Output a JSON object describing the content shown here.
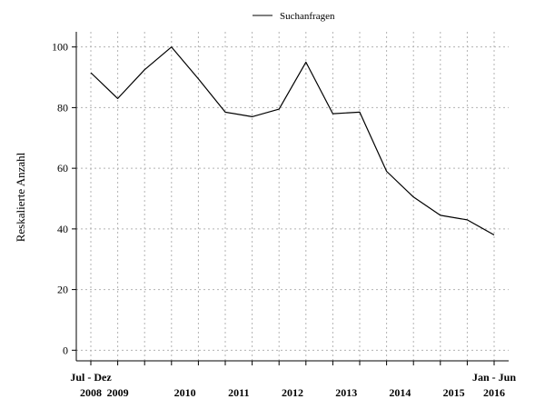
{
  "chart_data": {
    "type": "line",
    "ylabel": "Reskalierte Anzahl",
    "ylim": [
      -3.5,
      105
    ],
    "yticks": [
      0,
      20,
      40,
      60,
      80,
      100
    ],
    "grid": true,
    "legend_position": "top-center",
    "series": [
      {
        "name": "Suchanfragen",
        "color": "#000000",
        "values": [
          91.5,
          83,
          92.5,
          100,
          89.5,
          78.5,
          77,
          79.5,
          95,
          78,
          78.5,
          59,
          50.5,
          44.5,
          43,
          38
        ]
      }
    ],
    "x_label_blocks": [
      {
        "index": 0,
        "period": "Jul - Dez",
        "year": "2008"
      },
      {
        "index": 1,
        "period": "",
        "year": "2009"
      },
      {
        "index": 3.5,
        "period": "",
        "year": "2010"
      },
      {
        "index": 5.5,
        "period": "",
        "year": "2011"
      },
      {
        "index": 7.5,
        "period": "",
        "year": "2012"
      },
      {
        "index": 9.5,
        "period": "",
        "year": "2013"
      },
      {
        "index": 11.5,
        "period": "",
        "year": "2014"
      },
      {
        "index": 13.5,
        "period": "",
        "year": "2015"
      },
      {
        "index": 15,
        "period": "Jan - Jun",
        "year": "2016"
      }
    ]
  }
}
